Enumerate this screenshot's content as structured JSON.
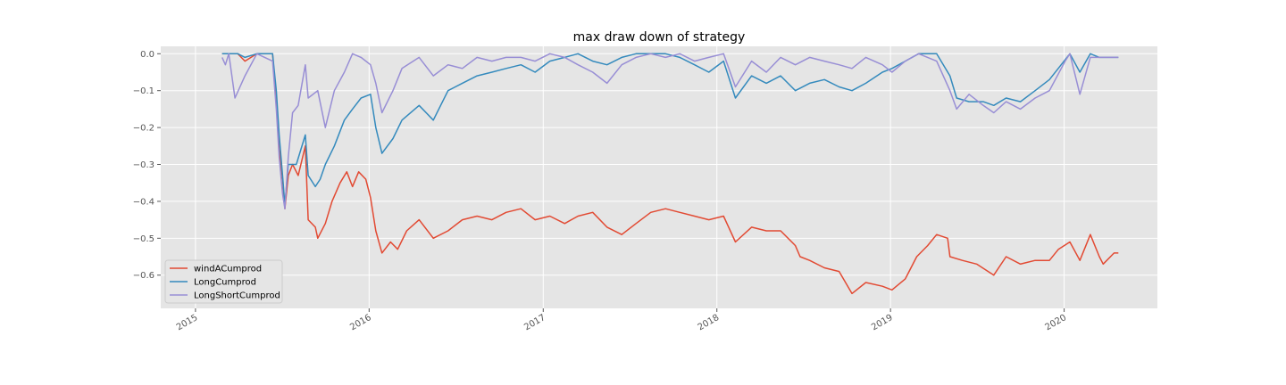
{
  "chart_data": {
    "type": "line",
    "title": "max draw down of strategy",
    "xlabel": "",
    "ylabel": "",
    "x_axis": "date",
    "xlim": [
      "2014-10-20",
      "2020-07-15"
    ],
    "ylim": [
      -0.69,
      0.02
    ],
    "x_ticks": [
      "2015-01-01",
      "2016-01-01",
      "2017-01-01",
      "2018-01-01",
      "2019-01-01",
      "2020-01-01"
    ],
    "x_tick_labels": [
      "2015",
      "2016",
      "2017",
      "2018",
      "2019",
      "2020"
    ],
    "y_ticks": [
      0.0,
      -0.1,
      -0.2,
      -0.3,
      -0.4,
      -0.5,
      -0.6
    ],
    "y_tick_labels": [
      "0.0",
      "−0.1",
      "−0.2",
      "−0.3",
      "−0.4",
      "−0.5",
      "−0.6"
    ],
    "grid": true,
    "style": "ggplot",
    "legend_position": "lower-left",
    "series": [
      {
        "name": "windACumprod",
        "color": "#E24A33",
        "points": [
          [
            "2015-02-26",
            0.0
          ],
          [
            "2015-03-31",
            0.0
          ],
          [
            "2015-04-15",
            -0.02
          ],
          [
            "2015-05-10",
            0.0
          ],
          [
            "2015-06-12",
            0.0
          ],
          [
            "2015-06-20",
            -0.13
          ],
          [
            "2015-06-26",
            -0.26
          ],
          [
            "2015-07-03",
            -0.34
          ],
          [
            "2015-07-08",
            -0.42
          ],
          [
            "2015-07-15",
            -0.33
          ],
          [
            "2015-07-24",
            -0.3
          ],
          [
            "2015-08-05",
            -0.33
          ],
          [
            "2015-08-20",
            -0.25
          ],
          [
            "2015-08-26",
            -0.45
          ],
          [
            "2015-09-10",
            -0.47
          ],
          [
            "2015-09-15",
            -0.5
          ],
          [
            "2015-10-01",
            -0.46
          ],
          [
            "2015-10-15",
            -0.4
          ],
          [
            "2015-11-01",
            -0.35
          ],
          [
            "2015-11-15",
            -0.32
          ],
          [
            "2015-11-27",
            -0.36
          ],
          [
            "2015-12-10",
            -0.32
          ],
          [
            "2015-12-25",
            -0.34
          ],
          [
            "2016-01-04",
            -0.39
          ],
          [
            "2016-01-15",
            -0.48
          ],
          [
            "2016-01-28",
            -0.54
          ],
          [
            "2016-02-15",
            -0.51
          ],
          [
            "2016-03-01",
            -0.53
          ],
          [
            "2016-03-20",
            -0.48
          ],
          [
            "2016-04-15",
            -0.45
          ],
          [
            "2016-05-15",
            -0.5
          ],
          [
            "2016-06-15",
            -0.48
          ],
          [
            "2016-07-15",
            -0.45
          ],
          [
            "2016-08-15",
            -0.44
          ],
          [
            "2016-09-15",
            -0.45
          ],
          [
            "2016-10-15",
            -0.43
          ],
          [
            "2016-11-15",
            -0.42
          ],
          [
            "2016-12-15",
            -0.45
          ],
          [
            "2017-01-15",
            -0.44
          ],
          [
            "2017-02-15",
            -0.46
          ],
          [
            "2017-03-15",
            -0.44
          ],
          [
            "2017-04-15",
            -0.43
          ],
          [
            "2017-05-15",
            -0.47
          ],
          [
            "2017-06-15",
            -0.49
          ],
          [
            "2017-07-15",
            -0.46
          ],
          [
            "2017-08-15",
            -0.43
          ],
          [
            "2017-09-15",
            -0.42
          ],
          [
            "2017-10-15",
            -0.43
          ],
          [
            "2017-11-15",
            -0.44
          ],
          [
            "2017-12-15",
            -0.45
          ],
          [
            "2018-01-15",
            -0.44
          ],
          [
            "2018-02-09",
            -0.51
          ],
          [
            "2018-03-15",
            -0.47
          ],
          [
            "2018-04-15",
            -0.48
          ],
          [
            "2018-05-15",
            -0.48
          ],
          [
            "2018-06-15",
            -0.52
          ],
          [
            "2018-06-25",
            -0.55
          ],
          [
            "2018-07-15",
            -0.56
          ],
          [
            "2018-08-15",
            -0.58
          ],
          [
            "2018-09-15",
            -0.59
          ],
          [
            "2018-10-12",
            -0.65
          ],
          [
            "2018-11-10",
            -0.62
          ],
          [
            "2018-12-15",
            -0.63
          ],
          [
            "2019-01-04",
            -0.64
          ],
          [
            "2019-02-01",
            -0.61
          ],
          [
            "2019-02-25",
            -0.55
          ],
          [
            "2019-03-20",
            -0.52
          ],
          [
            "2019-04-08",
            -0.49
          ],
          [
            "2019-05-01",
            -0.5
          ],
          [
            "2019-05-06",
            -0.55
          ],
          [
            "2019-06-01",
            -0.56
          ],
          [
            "2019-07-01",
            -0.57
          ],
          [
            "2019-08-06",
            -0.6
          ],
          [
            "2019-09-01",
            -0.55
          ],
          [
            "2019-10-01",
            -0.57
          ],
          [
            "2019-11-01",
            -0.56
          ],
          [
            "2019-12-01",
            -0.56
          ],
          [
            "2019-12-20",
            -0.53
          ],
          [
            "2020-01-13",
            -0.51
          ],
          [
            "2020-02-03",
            -0.56
          ],
          [
            "2020-02-25",
            -0.49
          ],
          [
            "2020-03-15",
            -0.55
          ],
          [
            "2020-03-23",
            -0.57
          ],
          [
            "2020-04-15",
            -0.54
          ],
          [
            "2020-04-24",
            -0.54
          ]
        ]
      },
      {
        "name": "LongCumprod",
        "color": "#348ABD",
        "points": [
          [
            "2015-02-26",
            0.0
          ],
          [
            "2015-03-31",
            0.0
          ],
          [
            "2015-04-15",
            -0.01
          ],
          [
            "2015-05-10",
            0.0
          ],
          [
            "2015-06-12",
            0.0
          ],
          [
            "2015-06-20",
            -0.1
          ],
          [
            "2015-06-26",
            -0.22
          ],
          [
            "2015-07-03",
            -0.33
          ],
          [
            "2015-07-08",
            -0.41
          ],
          [
            "2015-07-15",
            -0.3
          ],
          [
            "2015-08-01",
            -0.3
          ],
          [
            "2015-08-20",
            -0.22
          ],
          [
            "2015-08-26",
            -0.33
          ],
          [
            "2015-09-10",
            -0.36
          ],
          [
            "2015-09-20",
            -0.34
          ],
          [
            "2015-10-01",
            -0.3
          ],
          [
            "2015-10-20",
            -0.25
          ],
          [
            "2015-11-10",
            -0.18
          ],
          [
            "2015-11-27",
            -0.15
          ],
          [
            "2015-12-15",
            -0.12
          ],
          [
            "2016-01-04",
            -0.11
          ],
          [
            "2016-01-15",
            -0.2
          ],
          [
            "2016-01-28",
            -0.27
          ],
          [
            "2016-02-20",
            -0.23
          ],
          [
            "2016-03-10",
            -0.18
          ],
          [
            "2016-04-15",
            -0.14
          ],
          [
            "2016-05-15",
            -0.18
          ],
          [
            "2016-06-15",
            -0.1
          ],
          [
            "2016-07-15",
            -0.08
          ],
          [
            "2016-08-15",
            -0.06
          ],
          [
            "2016-09-15",
            -0.05
          ],
          [
            "2016-10-15",
            -0.04
          ],
          [
            "2016-11-15",
            -0.03
          ],
          [
            "2016-12-15",
            -0.05
          ],
          [
            "2017-01-15",
            -0.02
          ],
          [
            "2017-02-15",
            -0.01
          ],
          [
            "2017-03-15",
            0.0
          ],
          [
            "2017-04-15",
            -0.02
          ],
          [
            "2017-05-15",
            -0.03
          ],
          [
            "2017-06-15",
            -0.01
          ],
          [
            "2017-07-15",
            0.0
          ],
          [
            "2017-08-15",
            0.0
          ],
          [
            "2017-09-15",
            0.0
          ],
          [
            "2017-10-15",
            -0.01
          ],
          [
            "2017-11-15",
            -0.03
          ],
          [
            "2017-12-15",
            -0.05
          ],
          [
            "2018-01-15",
            -0.02
          ],
          [
            "2018-02-09",
            -0.12
          ],
          [
            "2018-03-15",
            -0.06
          ],
          [
            "2018-04-15",
            -0.08
          ],
          [
            "2018-05-15",
            -0.06
          ],
          [
            "2018-06-15",
            -0.1
          ],
          [
            "2018-07-15",
            -0.08
          ],
          [
            "2018-08-15",
            -0.07
          ],
          [
            "2018-09-15",
            -0.09
          ],
          [
            "2018-10-12",
            -0.1
          ],
          [
            "2018-11-10",
            -0.08
          ],
          [
            "2018-12-15",
            -0.05
          ],
          [
            "2019-01-04",
            -0.04
          ],
          [
            "2019-02-01",
            -0.02
          ],
          [
            "2019-03-01",
            0.0
          ],
          [
            "2019-04-08",
            0.0
          ],
          [
            "2019-05-06",
            -0.06
          ],
          [
            "2019-05-20",
            -0.12
          ],
          [
            "2019-06-15",
            -0.13
          ],
          [
            "2019-07-15",
            -0.13
          ],
          [
            "2019-08-06",
            -0.14
          ],
          [
            "2019-09-01",
            -0.12
          ],
          [
            "2019-10-01",
            -0.13
          ],
          [
            "2019-11-01",
            -0.1
          ],
          [
            "2019-12-01",
            -0.07
          ],
          [
            "2020-01-13",
            0.0
          ],
          [
            "2020-02-03",
            -0.05
          ],
          [
            "2020-02-25",
            0.0
          ],
          [
            "2020-03-15",
            -0.01
          ],
          [
            "2020-04-24",
            -0.01
          ]
        ]
      },
      {
        "name": "LongShortCumprod",
        "color": "#988ED5",
        "points": [
          [
            "2015-02-26",
            -0.01
          ],
          [
            "2015-03-05",
            -0.03
          ],
          [
            "2015-03-12",
            0.0
          ],
          [
            "2015-03-25",
            -0.12
          ],
          [
            "2015-04-15",
            -0.06
          ],
          [
            "2015-05-10",
            0.0
          ],
          [
            "2015-06-12",
            -0.02
          ],
          [
            "2015-06-20",
            -0.15
          ],
          [
            "2015-06-26",
            -0.28
          ],
          [
            "2015-07-03",
            -0.38
          ],
          [
            "2015-07-08",
            -0.42
          ],
          [
            "2015-07-15",
            -0.28
          ],
          [
            "2015-07-24",
            -0.16
          ],
          [
            "2015-08-05",
            -0.14
          ],
          [
            "2015-08-20",
            -0.03
          ],
          [
            "2015-08-26",
            -0.12
          ],
          [
            "2015-09-15",
            -0.1
          ],
          [
            "2015-10-01",
            -0.2
          ],
          [
            "2015-10-20",
            -0.1
          ],
          [
            "2015-11-10",
            -0.05
          ],
          [
            "2015-11-27",
            0.0
          ],
          [
            "2015-12-15",
            -0.01
          ],
          [
            "2016-01-04",
            -0.03
          ],
          [
            "2016-01-15",
            -0.08
          ],
          [
            "2016-01-28",
            -0.16
          ],
          [
            "2016-02-20",
            -0.1
          ],
          [
            "2016-03-10",
            -0.04
          ],
          [
            "2016-04-15",
            -0.01
          ],
          [
            "2016-05-15",
            -0.06
          ],
          [
            "2016-06-15",
            -0.03
          ],
          [
            "2016-07-15",
            -0.04
          ],
          [
            "2016-08-15",
            -0.01
          ],
          [
            "2016-09-15",
            -0.02
          ],
          [
            "2016-10-15",
            -0.01
          ],
          [
            "2016-11-15",
            -0.01
          ],
          [
            "2016-12-15",
            -0.02
          ],
          [
            "2017-01-15",
            0.0
          ],
          [
            "2017-02-15",
            -0.01
          ],
          [
            "2017-03-15",
            -0.03
          ],
          [
            "2017-04-15",
            -0.05
          ],
          [
            "2017-05-15",
            -0.08
          ],
          [
            "2017-06-15",
            -0.03
          ],
          [
            "2017-07-15",
            -0.01
          ],
          [
            "2017-08-15",
            0.0
          ],
          [
            "2017-09-15",
            -0.01
          ],
          [
            "2017-10-15",
            0.0
          ],
          [
            "2017-11-15",
            -0.02
          ],
          [
            "2017-12-15",
            -0.01
          ],
          [
            "2018-01-15",
            0.0
          ],
          [
            "2018-02-09",
            -0.09
          ],
          [
            "2018-03-15",
            -0.02
          ],
          [
            "2018-04-15",
            -0.05
          ],
          [
            "2018-05-15",
            -0.01
          ],
          [
            "2018-06-15",
            -0.03
          ],
          [
            "2018-07-15",
            -0.01
          ],
          [
            "2018-08-15",
            -0.02
          ],
          [
            "2018-09-15",
            -0.03
          ],
          [
            "2018-10-12",
            -0.04
          ],
          [
            "2018-11-10",
            -0.01
          ],
          [
            "2018-12-15",
            -0.03
          ],
          [
            "2019-01-04",
            -0.05
          ],
          [
            "2019-02-01",
            -0.02
          ],
          [
            "2019-03-01",
            0.0
          ],
          [
            "2019-04-08",
            -0.02
          ],
          [
            "2019-05-06",
            -0.1
          ],
          [
            "2019-05-20",
            -0.15
          ],
          [
            "2019-06-15",
            -0.11
          ],
          [
            "2019-07-15",
            -0.14
          ],
          [
            "2019-08-06",
            -0.16
          ],
          [
            "2019-09-01",
            -0.13
          ],
          [
            "2019-10-01",
            -0.15
          ],
          [
            "2019-11-01",
            -0.12
          ],
          [
            "2019-12-01",
            -0.1
          ],
          [
            "2020-01-03",
            -0.02
          ],
          [
            "2020-01-13",
            0.0
          ],
          [
            "2020-02-03",
            -0.11
          ],
          [
            "2020-02-25",
            -0.01
          ],
          [
            "2020-03-15",
            -0.01
          ],
          [
            "2020-04-24",
            -0.01
          ]
        ]
      }
    ]
  }
}
